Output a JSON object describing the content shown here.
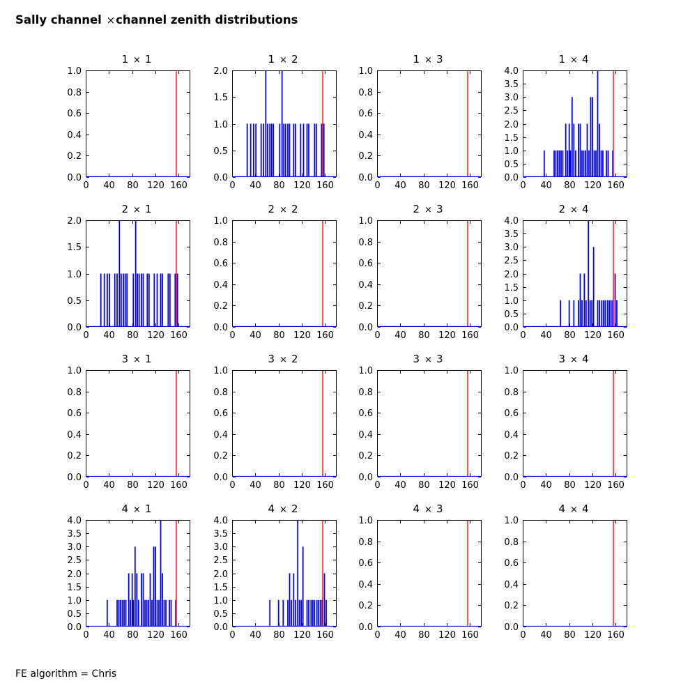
{
  "title": {
    "prefix": "Sally channel ",
    "times": "×",
    "suffix": "channel zenith distributions"
  },
  "footer": "FE algorithm = Chris",
  "colors": {
    "histogram": "#0000ff",
    "vline": "#ff0000",
    "axis": "#000000",
    "background": "#ffffff"
  },
  "chart_data": {
    "type": "bar",
    "title": "Sally channel ×channel zenith distributions",
    "annotation": "FE algorithm = Chris",
    "xlabel": "",
    "ylabel": "",
    "grid": {
      "rows": 4,
      "cols": 4
    },
    "xlim": [
      0,
      180
    ],
    "xticks": [
      0,
      40,
      80,
      120,
      160
    ],
    "vline_x": 156,
    "datasets": {
      "empty": [],
      "ch1_ch2": [
        [
          26,
          1
        ],
        [
          32,
          1
        ],
        [
          37,
          1
        ],
        [
          41,
          1
        ],
        [
          50,
          1
        ],
        [
          54,
          1
        ],
        [
          58,
          2
        ],
        [
          61,
          1
        ],
        [
          65,
          1
        ],
        [
          68,
          1
        ],
        [
          71,
          1
        ],
        [
          82,
          1
        ],
        [
          86,
          2
        ],
        [
          89,
          1
        ],
        [
          92,
          1
        ],
        [
          96,
          1
        ],
        [
          99,
          1
        ],
        [
          106,
          1
        ],
        [
          109,
          1
        ],
        [
          118,
          1
        ],
        [
          123,
          1
        ],
        [
          129,
          1
        ],
        [
          132,
          1
        ],
        [
          142,
          1
        ],
        [
          145,
          1
        ],
        [
          154,
          1
        ],
        [
          158,
          1
        ]
      ],
      "ch1_ch4": [
        [
          37,
          1
        ],
        [
          54,
          1
        ],
        [
          57,
          1
        ],
        [
          60,
          1
        ],
        [
          63,
          1
        ],
        [
          66,
          1
        ],
        [
          69,
          1
        ],
        [
          74,
          2
        ],
        [
          77,
          1
        ],
        [
          80,
          2
        ],
        [
          82,
          1
        ],
        [
          85,
          3
        ],
        [
          88,
          2
        ],
        [
          91,
          1
        ],
        [
          96,
          2
        ],
        [
          99,
          2
        ],
        [
          102,
          1
        ],
        [
          105,
          1
        ],
        [
          108,
          1
        ],
        [
          111,
          2
        ],
        [
          114,
          1
        ],
        [
          117,
          3
        ],
        [
          120,
          3
        ],
        [
          123,
          1
        ],
        [
          126,
          1
        ],
        [
          129,
          4
        ],
        [
          132,
          2
        ],
        [
          135,
          1
        ],
        [
          138,
          1
        ],
        [
          144,
          1
        ],
        [
          147,
          1
        ],
        [
          155,
          1
        ]
      ],
      "ch2_ch4": [
        [
          65,
          1
        ],
        [
          80,
          1
        ],
        [
          88,
          1
        ],
        [
          96,
          1
        ],
        [
          99,
          2
        ],
        [
          102,
          1
        ],
        [
          106,
          2
        ],
        [
          109,
          1
        ],
        [
          113,
          4
        ],
        [
          116,
          1
        ],
        [
          119,
          1
        ],
        [
          122,
          3
        ],
        [
          129,
          1
        ],
        [
          132,
          1
        ],
        [
          136,
          1
        ],
        [
          139,
          1
        ],
        [
          142,
          1
        ],
        [
          146,
          1
        ],
        [
          149,
          1
        ],
        [
          152,
          1
        ],
        [
          155,
          1
        ],
        [
          159,
          2
        ],
        [
          162,
          1
        ]
      ]
    },
    "subplots": [
      {
        "name": "1 × 1",
        "row": 1,
        "col": 1,
        "ymax": 1,
        "ystep": 0.2,
        "data": "empty"
      },
      {
        "name": "1 × 2",
        "row": 1,
        "col": 2,
        "ymax": 2,
        "ystep": 0.5,
        "data": "ch1_ch2"
      },
      {
        "name": "1 × 3",
        "row": 1,
        "col": 3,
        "ymax": 1,
        "ystep": 0.2,
        "data": "empty"
      },
      {
        "name": "1 × 4",
        "row": 1,
        "col": 4,
        "ymax": 4,
        "ystep": 0.5,
        "data": "ch1_ch4"
      },
      {
        "name": "2 × 1",
        "row": 2,
        "col": 1,
        "ymax": 2,
        "ystep": 0.5,
        "data": "ch1_ch2"
      },
      {
        "name": "2 × 2",
        "row": 2,
        "col": 2,
        "ymax": 1,
        "ystep": 0.2,
        "data": "empty"
      },
      {
        "name": "2 × 3",
        "row": 2,
        "col": 3,
        "ymax": 1,
        "ystep": 0.2,
        "data": "empty"
      },
      {
        "name": "2 × 4",
        "row": 2,
        "col": 4,
        "ymax": 4,
        "ystep": 0.5,
        "data": "ch2_ch4"
      },
      {
        "name": "3 × 1",
        "row": 3,
        "col": 1,
        "ymax": 1,
        "ystep": 0.2,
        "data": "empty"
      },
      {
        "name": "3 × 2",
        "row": 3,
        "col": 2,
        "ymax": 1,
        "ystep": 0.2,
        "data": "empty"
      },
      {
        "name": "3 × 3",
        "row": 3,
        "col": 3,
        "ymax": 1,
        "ystep": 0.2,
        "data": "empty"
      },
      {
        "name": "3 × 4",
        "row": 3,
        "col": 4,
        "ymax": 1,
        "ystep": 0.2,
        "data": "empty"
      },
      {
        "name": "4 × 1",
        "row": 4,
        "col": 1,
        "ymax": 4,
        "ystep": 0.5,
        "data": "ch1_ch4"
      },
      {
        "name": "4 × 2",
        "row": 4,
        "col": 2,
        "ymax": 4,
        "ystep": 0.5,
        "data": "ch2_ch4"
      },
      {
        "name": "4 × 3",
        "row": 4,
        "col": 3,
        "ymax": 1,
        "ystep": 0.2,
        "data": "empty"
      },
      {
        "name": "4 × 4",
        "row": 4,
        "col": 4,
        "ymax": 1,
        "ystep": 0.2,
        "data": "empty"
      }
    ]
  }
}
